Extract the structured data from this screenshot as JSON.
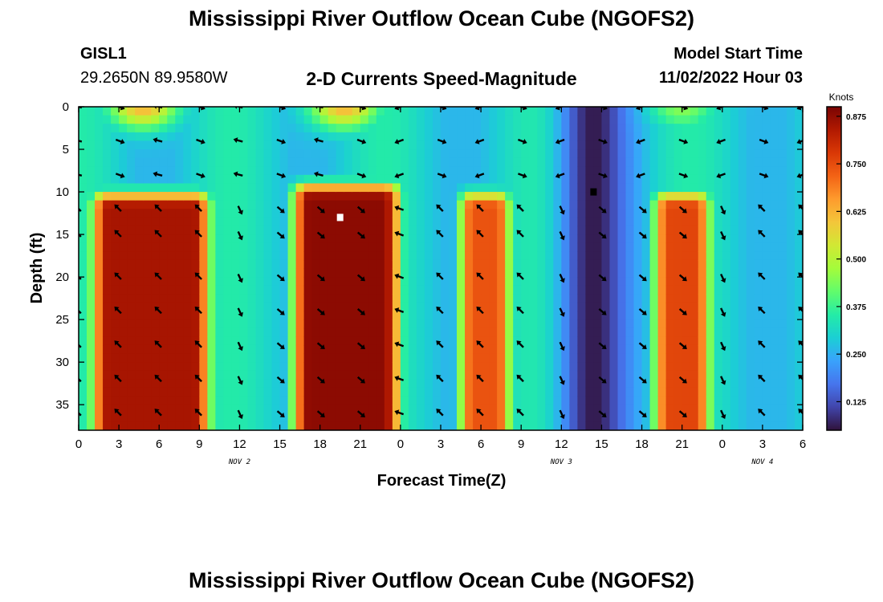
{
  "header": {
    "title": "Mississippi River Outflow Ocean Cube (NGOFS2)",
    "station": "GISL1",
    "coords": "29.2650N  89.9580W",
    "plot_title": "2-D Currents Speed-Magnitude",
    "model_start_label": "Model Start Time",
    "model_start_value": "11/02/2022 Hour 03"
  },
  "footer": {
    "title": "Mississippi River Outflow Ocean Cube (NGOFS2)"
  },
  "colors": {
    "colormap": [
      "#30123b",
      "#4145ab",
      "#4675ed",
      "#39a2fc",
      "#1bcfd4",
      "#24eca6",
      "#61fc6c",
      "#a4fc3b",
      "#d1e834",
      "#f3c63a",
      "#fe9b2d",
      "#f36315",
      "#d93806",
      "#b11901",
      "#7a0403"
    ],
    "arrow": "#000000",
    "marker_white": "#ffffff",
    "marker_black": "#000000"
  },
  "chart_data": {
    "type": "heatmap",
    "title": "2-D Currents Speed-Magnitude",
    "xlabel": "Forecast Time(Z)",
    "ylabel": "Depth (ft)",
    "xlim": [
      0,
      54
    ],
    "ylim": [
      38,
      0
    ],
    "x_ticks": [
      0,
      3,
      6,
      9,
      12,
      15,
      18,
      21,
      24,
      27,
      30,
      33,
      36,
      39,
      42,
      45,
      48,
      51,
      54
    ],
    "x_tick_labels": [
      "0",
      "3",
      "6",
      "9",
      "12",
      "15",
      "18",
      "21",
      "0",
      "3",
      "6",
      "9",
      "12",
      "15",
      "18",
      "21",
      "0",
      "3",
      "6"
    ],
    "y_ticks": [
      0,
      5,
      10,
      15,
      20,
      25,
      30,
      35
    ],
    "y_tick_labels": [
      "0",
      "5",
      "10",
      "15",
      "20",
      "25",
      "30",
      "35"
    ],
    "day_labels": [
      {
        "x": 12,
        "label": "NOV 2"
      },
      {
        "x": 36,
        "label": "NOV 3"
      },
      {
        "x": 51,
        "label": "NOV 4"
      }
    ],
    "colorbar": {
      "label": "Knots",
      "range": [
        0.05,
        0.9
      ],
      "ticks": [
        0.125,
        0.25,
        0.375,
        0.5,
        0.625,
        0.75,
        0.875
      ],
      "tick_labels": [
        "0.125",
        "0.250",
        "0.375",
        "0.500",
        "0.625",
        "0.750",
        "0.875"
      ]
    },
    "speed_features": [
      {
        "kind": "max",
        "x_start": 0.6,
        "x_end": 10.2,
        "depth_start": 11,
        "depth_end": 38,
        "speed": 0.85
      },
      {
        "kind": "max",
        "x_start": 15.6,
        "x_end": 24.4,
        "depth_start": 10,
        "depth_end": 38,
        "speed": 0.88
      },
      {
        "kind": "max",
        "x_start": 28.2,
        "x_end": 32.4,
        "depth_start": 11,
        "depth_end": 38,
        "speed": 0.74
      },
      {
        "kind": "max",
        "x_start": 42.6,
        "x_end": 47.4,
        "depth_start": 11,
        "depth_end": 38,
        "speed": 0.76
      },
      {
        "kind": "min",
        "x_center": 38.4,
        "width": 2.4,
        "speed": 0.06
      },
      {
        "kind": "surface_max",
        "x_center": 4.8,
        "speed": 0.62
      },
      {
        "kind": "surface_max",
        "x_center": 19.8,
        "speed": 0.62
      },
      {
        "kind": "surface_max",
        "x_center": 45,
        "speed": 0.45
      }
    ],
    "markers": [
      {
        "x": 19.5,
        "depth": 13,
        "color": "white"
      },
      {
        "x": 38.4,
        "depth": 10,
        "color": "black"
      }
    ],
    "arrow_depths": [
      0,
      4,
      8,
      12,
      15,
      20,
      24,
      28,
      32,
      36
    ],
    "arrow_x": [
      0,
      3,
      6,
      9,
      12,
      15,
      18,
      21,
      24,
      27,
      30,
      33,
      36,
      39,
      42,
      45,
      48,
      51,
      54
    ]
  }
}
